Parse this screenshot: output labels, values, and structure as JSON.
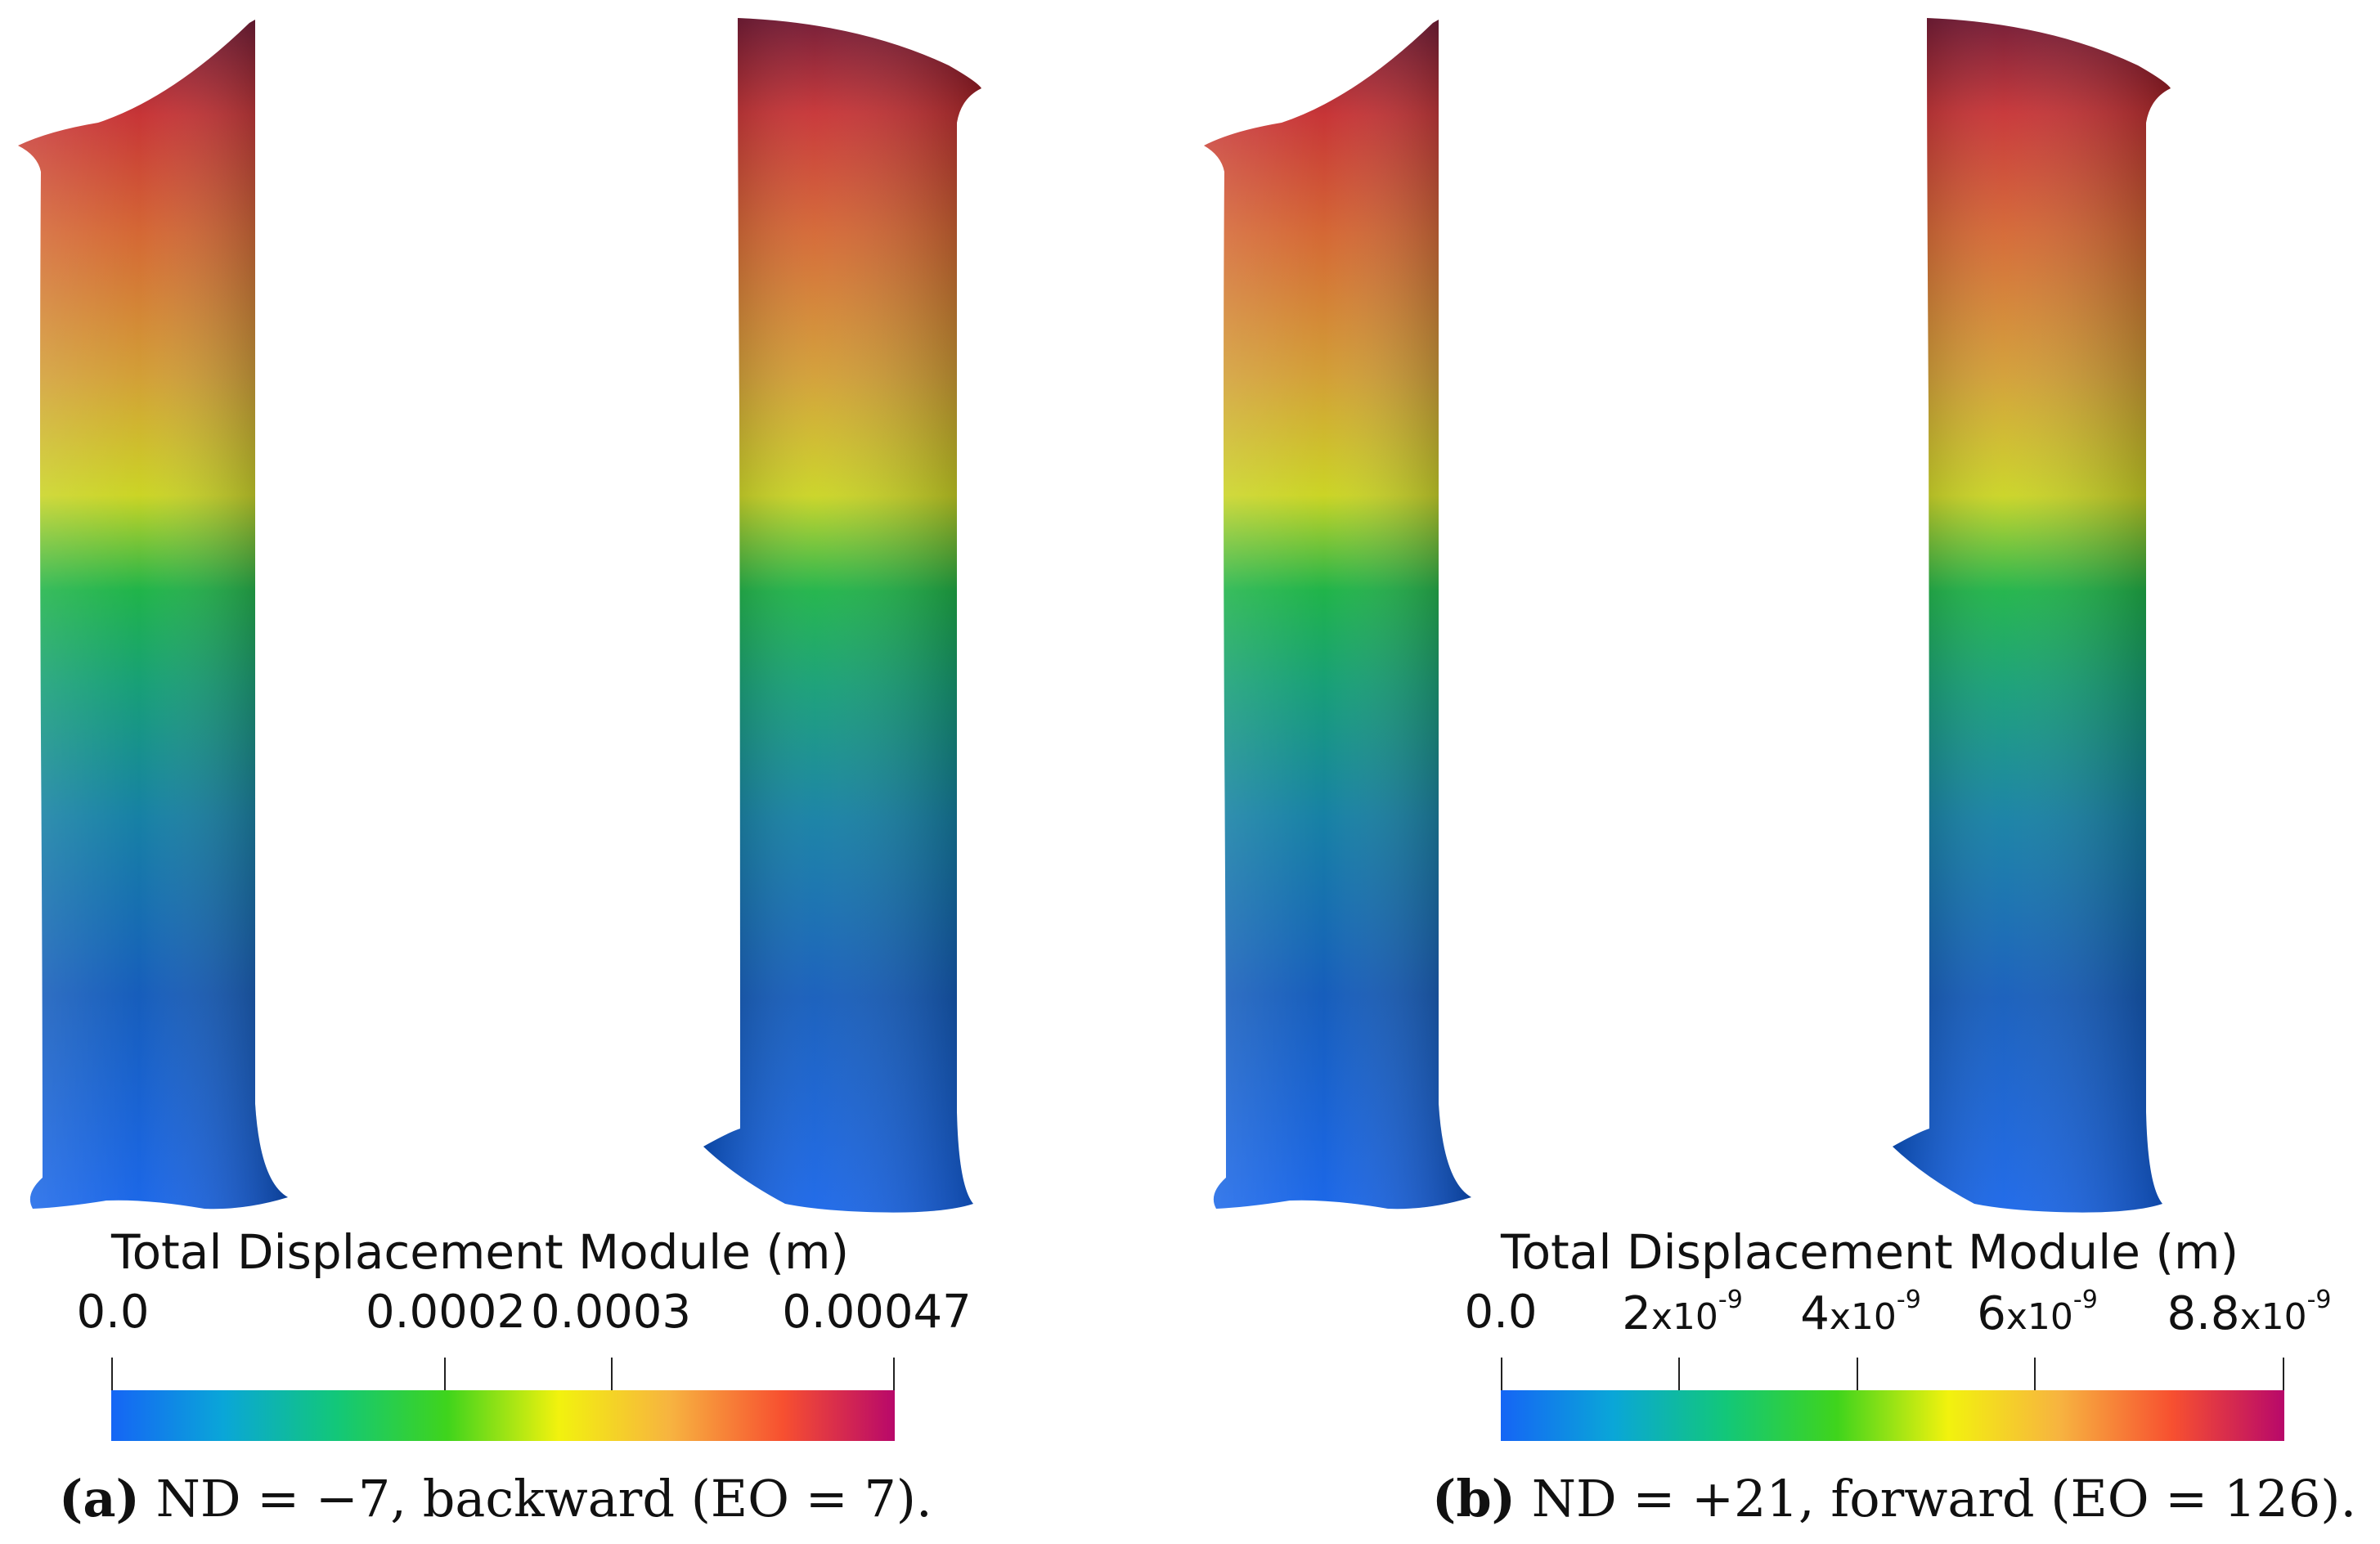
{
  "panels": [
    {
      "id": "a",
      "colorbar_title": "Total Displacement Module (m)",
      "ticks": [
        {
          "label": "0.0",
          "value": 0.0
        },
        {
          "label": "0.0002",
          "value": 0.0002
        },
        {
          "label": "0.0003",
          "value": 0.0003
        },
        {
          "label": "0.00047",
          "value": 0.00047
        }
      ],
      "range": [
        0.0,
        0.00047
      ],
      "caption_tag": "(a)",
      "caption_text": "ND = −7, backward (EO = 7)."
    },
    {
      "id": "b",
      "colorbar_title": "Total Displacement Module (m)",
      "ticks": [
        {
          "label": "0.0",
          "value": 0.0
        },
        {
          "mantissa": "2",
          "exp": "-9",
          "value": 2e-09
        },
        {
          "mantissa": "4",
          "exp": "-9",
          "value": 4e-09
        },
        {
          "mantissa": "6",
          "exp": "-9",
          "value": 6e-09
        },
        {
          "mantissa": "8.8",
          "exp": "-9",
          "value": 8.8e-09
        }
      ],
      "range": [
        0.0,
        8.8e-09
      ],
      "caption_tag": "(b)",
      "caption_text": "ND = +21, forward (EO = 126)."
    }
  ],
  "colormap": [
    "#1565f5",
    "#0aa6d8",
    "#12c77a",
    "#3fd41c",
    "#f2f20e",
    "#f7b340",
    "#f75030",
    "#b8086a"
  ],
  "blade_colormap": [
    "#0d4fd6",
    "#0a66b0",
    "#088a8a",
    "#0fa04a",
    "#b8c81a",
    "#d9a02a",
    "#d9602a",
    "#c22428",
    "#7a0e2a"
  ]
}
